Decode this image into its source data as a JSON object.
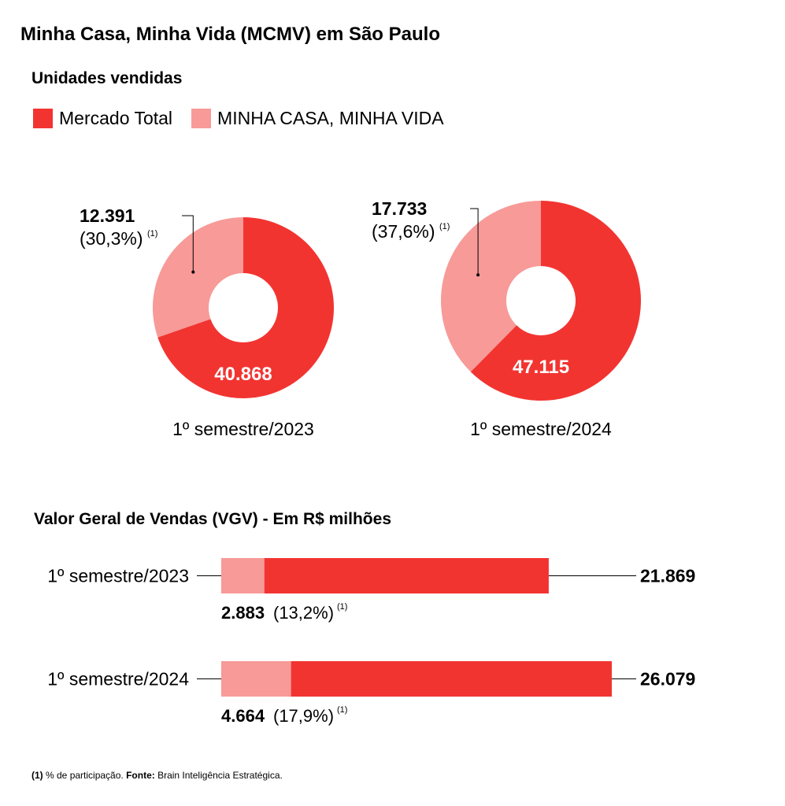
{
  "title": "Minha Casa, Minha Vida (MCMV) em São Paulo",
  "colors": {
    "total": "#f23431",
    "mcmv": "#f79a98",
    "line": "#000000",
    "inner_text": "#ffffff"
  },
  "footnote": {
    "marker": "(1)",
    "text": " % de participação. ",
    "source_label": "Fonte:",
    "source": " Brain Inteligência Estratégica."
  },
  "chart_data": [
    {
      "type": "pie",
      "title": "Unidades vendidas",
      "legend": [
        "Mercado Total",
        "MINHA CASA, MINHA VIDA"
      ],
      "donuts": [
        {
          "label": "1º semestre/2023",
          "total": 40868,
          "total_text": "40.868",
          "mcmv": 12391,
          "mcmv_text": "12.391",
          "share_text": "(30,3%)",
          "share_pct": 30.3,
          "note": "(1)"
        },
        {
          "label": "1º semestre/2024",
          "total": 47115,
          "total_text": "47.115",
          "mcmv": 17733,
          "mcmv_text": "17.733",
          "share_text": "(37,6%)",
          "share_pct": 37.6,
          "note": "(1)"
        }
      ]
    },
    {
      "type": "bar",
      "title": "Valor Geral de Vendas (VGV) - Em R$ milhões",
      "categories": [
        "1º semestre/2023",
        "1º semestre/2024"
      ],
      "series": [
        {
          "name": "Mercado Total",
          "values": [
            21869,
            26079
          ],
          "labels": [
            "21.869",
            "26.079"
          ]
        },
        {
          "name": "MINHA CASA, MINHA VIDA",
          "values": [
            2883,
            4664
          ],
          "labels": [
            "2.883",
            "4.664"
          ],
          "shares": [
            "(13,2%)",
            "(17,9%)"
          ],
          "shares_pct": [
            13.2,
            17.9
          ],
          "note": "(1)"
        }
      ]
    }
  ]
}
